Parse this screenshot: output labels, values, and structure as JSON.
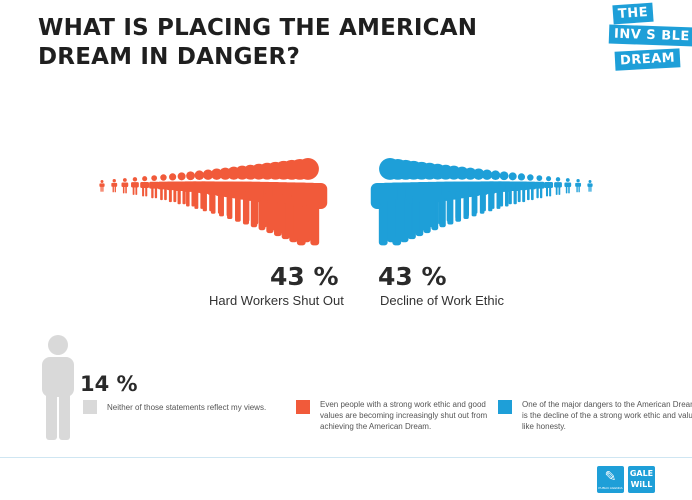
{
  "title": "WHAT IS PLACING THE AMERICAN DREAM IN DANGER?",
  "logo": {
    "line1": "THE",
    "line2": "INV S BLE",
    "line3": "DREAM"
  },
  "colors": {
    "red": "#f15a3a",
    "blue": "#1e9fd8",
    "gray": "#d9d9d9"
  },
  "chart_data": {
    "type": "bar",
    "categories": [
      "Hard Workers Shut Out",
      "Decline of Work Ethic",
      "Neither of those statements reflect my views."
    ],
    "values": [
      43,
      43,
      14
    ],
    "value_labels": [
      "43 %",
      "43 %",
      "14 %"
    ],
    "colors": [
      "#f15a3a",
      "#1e9fd8",
      "#d9d9d9"
    ],
    "legend": [
      {
        "color": "#d9d9d9",
        "text": "Neither of those statements reflect my views."
      },
      {
        "color": "#f15a3a",
        "text": "Even people with a strong work ethic and good values are becoming increasingly shut out from achieving the American Dream."
      },
      {
        "color": "#1e9fd8",
        "text": "One of the major dangers to the American Dream is the decline of the a strong work ethic and values like honesty."
      }
    ]
  },
  "footer": {
    "partner1": "PUBLIC AGENDA",
    "partner2_line1": "GALE",
    "partner2_line2": "WiLL"
  }
}
